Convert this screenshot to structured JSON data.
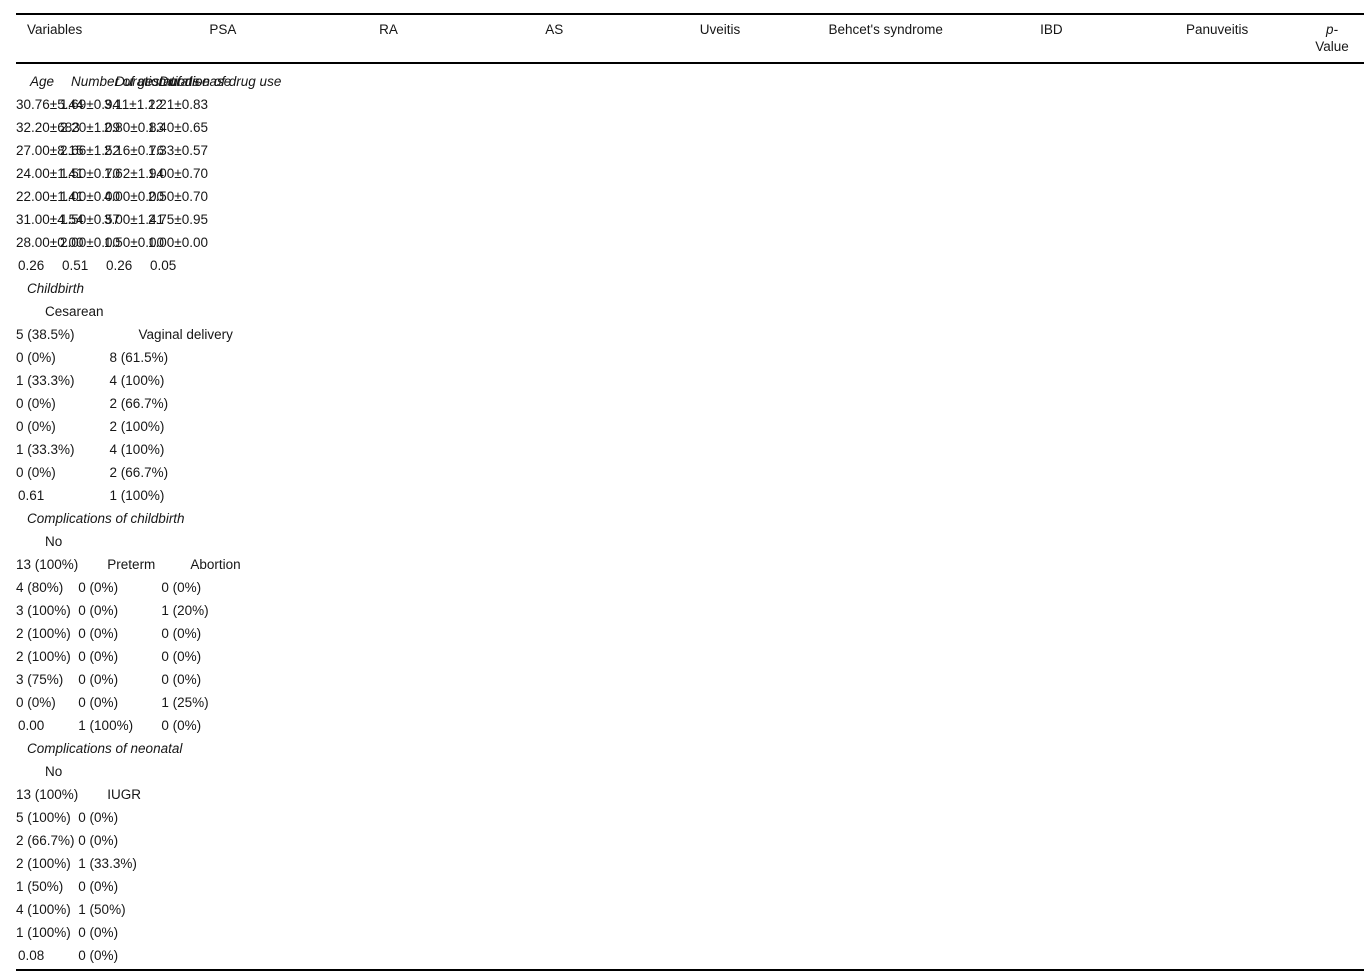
{
  "table": {
    "plus_minus": "±",
    "header": {
      "variables_label": "Variables",
      "groups": [
        "PSA",
        "RA",
        "AS",
        "Uveitis",
        "Behcet's syndrome",
        "IBD",
        "Panuveitis"
      ],
      "p_line1": "p-",
      "p_line2": "Value"
    },
    "rows": [
      {
        "type": "mean",
        "label": "Age",
        "cells": [
          {
            "mean": "30.76",
            "sd": "5.44"
          },
          {
            "mean": "32.20",
            "sd": "683"
          },
          {
            "mean": "27.00",
            "sd": "8.15"
          },
          {
            "mean": "24.00",
            "sd": "1.41"
          },
          {
            "mean": "22.00",
            "sd": "1.41"
          },
          {
            "mean": "31.00",
            "sd": "4.54"
          },
          {
            "mean": "28.00",
            "sd": "0.00"
          }
        ],
        "p": "0.26"
      },
      {
        "type": "mean",
        "label": "Number of gestations",
        "cells": [
          {
            "mean": "1.69",
            "sd": "0.94"
          },
          {
            "mean": "2.20",
            "sd": "1.09"
          },
          {
            "mean": "2.66",
            "sd": "1.52"
          },
          {
            "mean": "1.50",
            "sd": "0.70"
          },
          {
            "mean": "1.00",
            "sd": "0.00"
          },
          {
            "mean": "1.50",
            "sd": "0.57"
          },
          {
            "mean": "2.00",
            "sd": "0.00"
          }
        ],
        "p": "0.51"
      },
      {
        "type": "mean",
        "label": "Duration of disease",
        "cells": [
          {
            "mean": "3.11",
            "sd": "1.12"
          },
          {
            "mean": "2.80",
            "sd": "0.83"
          },
          {
            "mean": "2.16",
            "sd": "0.76"
          },
          {
            "mean": "1.62",
            "sd": "1.94"
          },
          {
            "mean": "4.00",
            "sd": "0.00"
          },
          {
            "mean": "3.00",
            "sd": "1.41"
          },
          {
            "mean": "1.50",
            "sd": "0.00"
          }
        ],
        "p": "0.26"
      },
      {
        "type": "mean",
        "label": "Duration of drug use",
        "cells": [
          {
            "mean": "2.21",
            "sd": "0.83"
          },
          {
            "mean": "1.40",
            "sd": "0.65"
          },
          {
            "mean": "1.33",
            "sd": "0.57"
          },
          {
            "mean": "1.00",
            "sd": "0.70"
          },
          {
            "mean": "2.50",
            "sd": "0.70"
          },
          {
            "mean": "2.75",
            "sd": "0.95"
          },
          {
            "mean": "1.00",
            "sd": "0.00"
          }
        ],
        "p": "0.05"
      },
      {
        "type": "section",
        "label": "Childbirth"
      },
      {
        "type": "count",
        "label": "Cesarean",
        "cells": [
          "5 (38.5%)",
          "0 (0%)",
          "1 (33.3%)",
          "0 (0%)",
          "0 (0%)",
          "1 (33.3%)",
          "0 (0%)"
        ],
        "p": "0.61"
      },
      {
        "type": "count",
        "label": "Vaginal delivery",
        "cells": [
          "8 (61.5%)",
          "4 (100%)",
          "2 (66.7%)",
          "2 (100%)",
          "4 (100%)",
          "2 (66.7%)",
          "1 (100%)"
        ],
        "p": ""
      },
      {
        "type": "section",
        "label": "Complications of childbirth"
      },
      {
        "type": "count",
        "label": "No",
        "cells": [
          "13 (100%)",
          "4 (80%)",
          "3 (100%)",
          "2 (100%)",
          "2 (100%)",
          "3 (75%)",
          "0 (0%)"
        ],
        "p": "0.00"
      },
      {
        "type": "count",
        "label": "Preterm",
        "cells": [
          "0 (0%)",
          "0 (0%)",
          "0 (0%)",
          "0 (0%)",
          "0 (0%)",
          "0 (0%)",
          "1 (100%)"
        ],
        "p": ""
      },
      {
        "type": "count",
        "label": "Abortion",
        "cells": [
          "0 (0%)",
          "1 (20%)",
          "0 (0%)",
          "0 (0%)",
          "0 (0%)",
          "1 (25%)",
          "0 (0%)"
        ],
        "p": ""
      },
      {
        "type": "section",
        "label": "Complications of neonatal"
      },
      {
        "type": "count",
        "label": "No",
        "cells": [
          "13 (100%)",
          "5 (100%)",
          "2 (66.7%)",
          "2 (100%)",
          "1 (50%)",
          "4 (100%)",
          "1 (100%)"
        ],
        "p": "0.08"
      },
      {
        "type": "count",
        "label": "IUGR",
        "cells": [
          "0 (0%)",
          "0 (0%)",
          "1 (33.3%)",
          "0 (0%)",
          "1 (50%)",
          "0 (0%)",
          "0 (0%)"
        ],
        "p": ""
      }
    ]
  }
}
